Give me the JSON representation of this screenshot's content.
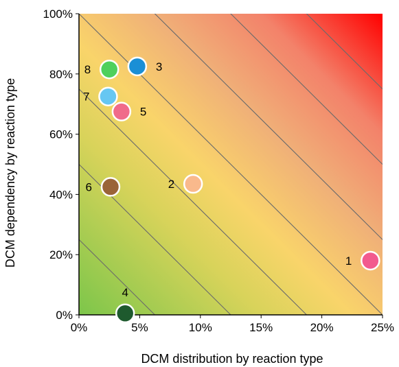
{
  "chart_data": {
    "type": "scatter",
    "title": "",
    "xlabel": "DCM distribution by reaction type",
    "ylabel": "DCM dependency by reaction type",
    "xlim": [
      0,
      25
    ],
    "ylim": [
      0,
      100
    ],
    "x_ticks": [
      "0%",
      "5%",
      "10%",
      "15%",
      "20%",
      "25%"
    ],
    "y_ticks": [
      "0%",
      "20%",
      "40%",
      "60%",
      "80%",
      "100%"
    ],
    "grid": false,
    "background": "gradient green (bottom-left) to yellow, orange and red (top-right) with diagonal contour lines",
    "colors": {
      "green": "#7cc64a",
      "yellow": "#f9d46a",
      "orange": "#f0b078",
      "red": "#ff0000",
      "contour": "#6b6b6b"
    },
    "points": [
      {
        "label": "1",
        "x": 24.0,
        "y": 18.0,
        "color": "#f25a8e"
      },
      {
        "label": "2",
        "x": 9.4,
        "y": 43.5,
        "color": "#f9b98c"
      },
      {
        "label": "3",
        "x": 4.8,
        "y": 82.5,
        "color": "#1a8fd6"
      },
      {
        "label": "4",
        "x": 3.8,
        "y": 0.5,
        "color": "#1e5a2e"
      },
      {
        "label": "5",
        "x": 3.5,
        "y": 67.5,
        "color": "#f06b8a"
      },
      {
        "label": "6",
        "x": 2.6,
        "y": 42.5,
        "color": "#9a6438"
      },
      {
        "label": "7",
        "x": 2.4,
        "y": 72.5,
        "color": "#66c7f2"
      },
      {
        "label": "8",
        "x": 2.5,
        "y": 81.5,
        "color": "#4fd05c"
      }
    ]
  }
}
